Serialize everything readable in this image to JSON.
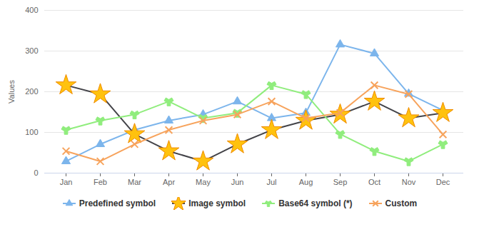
{
  "chart_data": {
    "type": "line",
    "y_label": "Values",
    "categories": [
      "Jan",
      "Feb",
      "Mar",
      "Apr",
      "May",
      "Jun",
      "Jul",
      "Aug",
      "Sep",
      "Oct",
      "Nov",
      "Dec"
    ],
    "ylim": [
      0,
      400
    ],
    "yticks": [
      0,
      100,
      200,
      300,
      400
    ],
    "grid": true,
    "legend": "bottom",
    "series": [
      {
        "name": "Predefined symbol",
        "color": "#7cb5ec",
        "marker": "triangle",
        "values": [
          29,
          71,
          106,
          129,
          144,
          176,
          135,
          148,
          316,
          294,
          195,
          154
        ]
      },
      {
        "name": "Image symbol",
        "color": "#434348",
        "marker": "sun",
        "values": [
          216,
          194,
          96,
          54,
          29,
          71,
          106,
          129,
          144,
          176,
          135,
          148
        ]
      },
      {
        "name": "Base64 symbol (*)",
        "color": "#90ed7d",
        "marker": "check",
        "values": [
          106,
          129,
          144,
          176,
          135,
          148,
          216,
          194,
          96,
          54,
          29,
          71
        ]
      },
      {
        "name": "Custom",
        "color": "#f7a35c",
        "marker": "cross",
        "values": [
          54,
          29,
          71,
          106,
          129,
          144,
          176,
          135,
          148,
          216,
          194,
          95
        ]
      }
    ]
  }
}
